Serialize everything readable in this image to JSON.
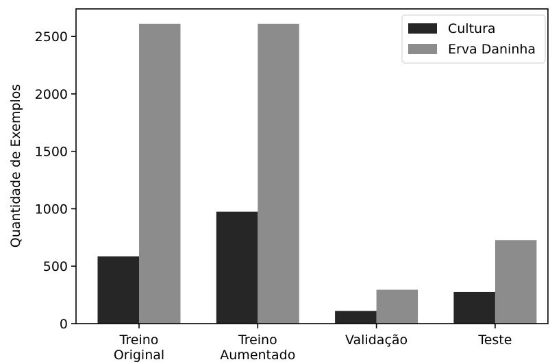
{
  "chart_data": {
    "type": "bar",
    "categories": [
      [
        "Treino",
        "Original"
      ],
      [
        "Treino",
        "Aumentado"
      ],
      [
        "Validação"
      ],
      [
        "Teste"
      ]
    ],
    "series": [
      {
        "name": "Cultura",
        "values": [
          585,
          975,
          110,
          275
        ]
      },
      {
        "name": "Erva Daninha",
        "values": [
          2610,
          2610,
          295,
          727
        ]
      }
    ],
    "colors": [
      "#262626",
      "#8c8c8c"
    ],
    "xlabel": "",
    "ylabel": "Quantidade de Exemplos",
    "ylim": [
      0,
      2740
    ],
    "yticks": [
      0,
      500,
      1000,
      1500,
      2000,
      2500
    ],
    "grid": false,
    "legend": "top-right"
  }
}
